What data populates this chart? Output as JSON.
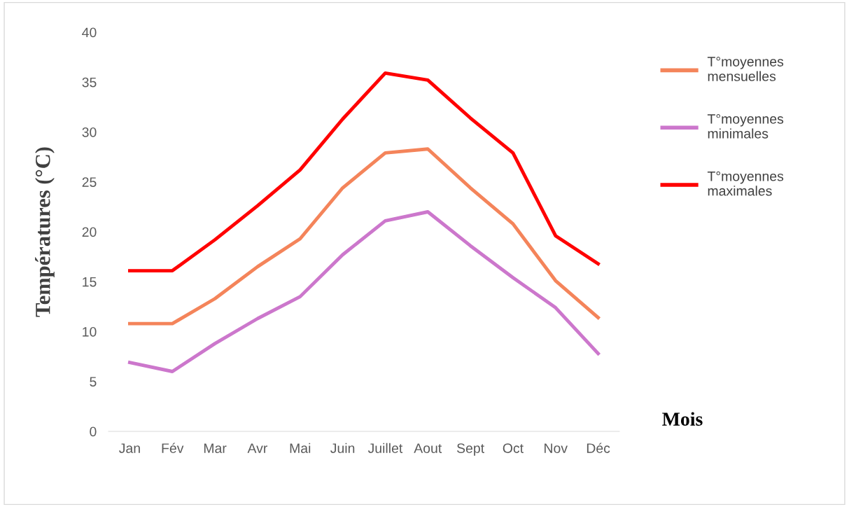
{
  "chart_data": {
    "type": "line",
    "ylabel": "Températures (°C)",
    "xlabel": "Mois",
    "categories": [
      "Jan",
      "Fév",
      "Mar",
      "Avr",
      "Mai",
      "Juin",
      "Juillet",
      "Aout",
      "Sept",
      "Oct",
      "Nov",
      "Déc"
    ],
    "series": [
      {
        "name": "T°moyennes mensuelles",
        "color": "#f4845a",
        "values": [
          10.8,
          10.8,
          13.3,
          16.5,
          19.3,
          24.4,
          27.9,
          28.3,
          24.4,
          20.8,
          15.1,
          11.4
        ]
      },
      {
        "name": "T°moyennes minimales",
        "color": "#cc77cc",
        "values": [
          6.9,
          6.0,
          8.8,
          11.3,
          13.5,
          17.7,
          21.1,
          22.0,
          18.6,
          15.4,
          12.4,
          7.8
        ]
      },
      {
        "name": "T°moyennes maximales",
        "color": "#ff0000",
        "values": [
          16.1,
          16.1,
          19.2,
          22.6,
          26.2,
          31.3,
          35.9,
          35.2,
          31.4,
          27.9,
          19.6,
          16.8
        ]
      }
    ],
    "ylim": [
      0,
      40
    ],
    "yticks": [
      0,
      5,
      10,
      15,
      20,
      25,
      30,
      35,
      40
    ],
    "grid": false,
    "legend": "right",
    "line_style": "solid",
    "marker": "none"
  }
}
